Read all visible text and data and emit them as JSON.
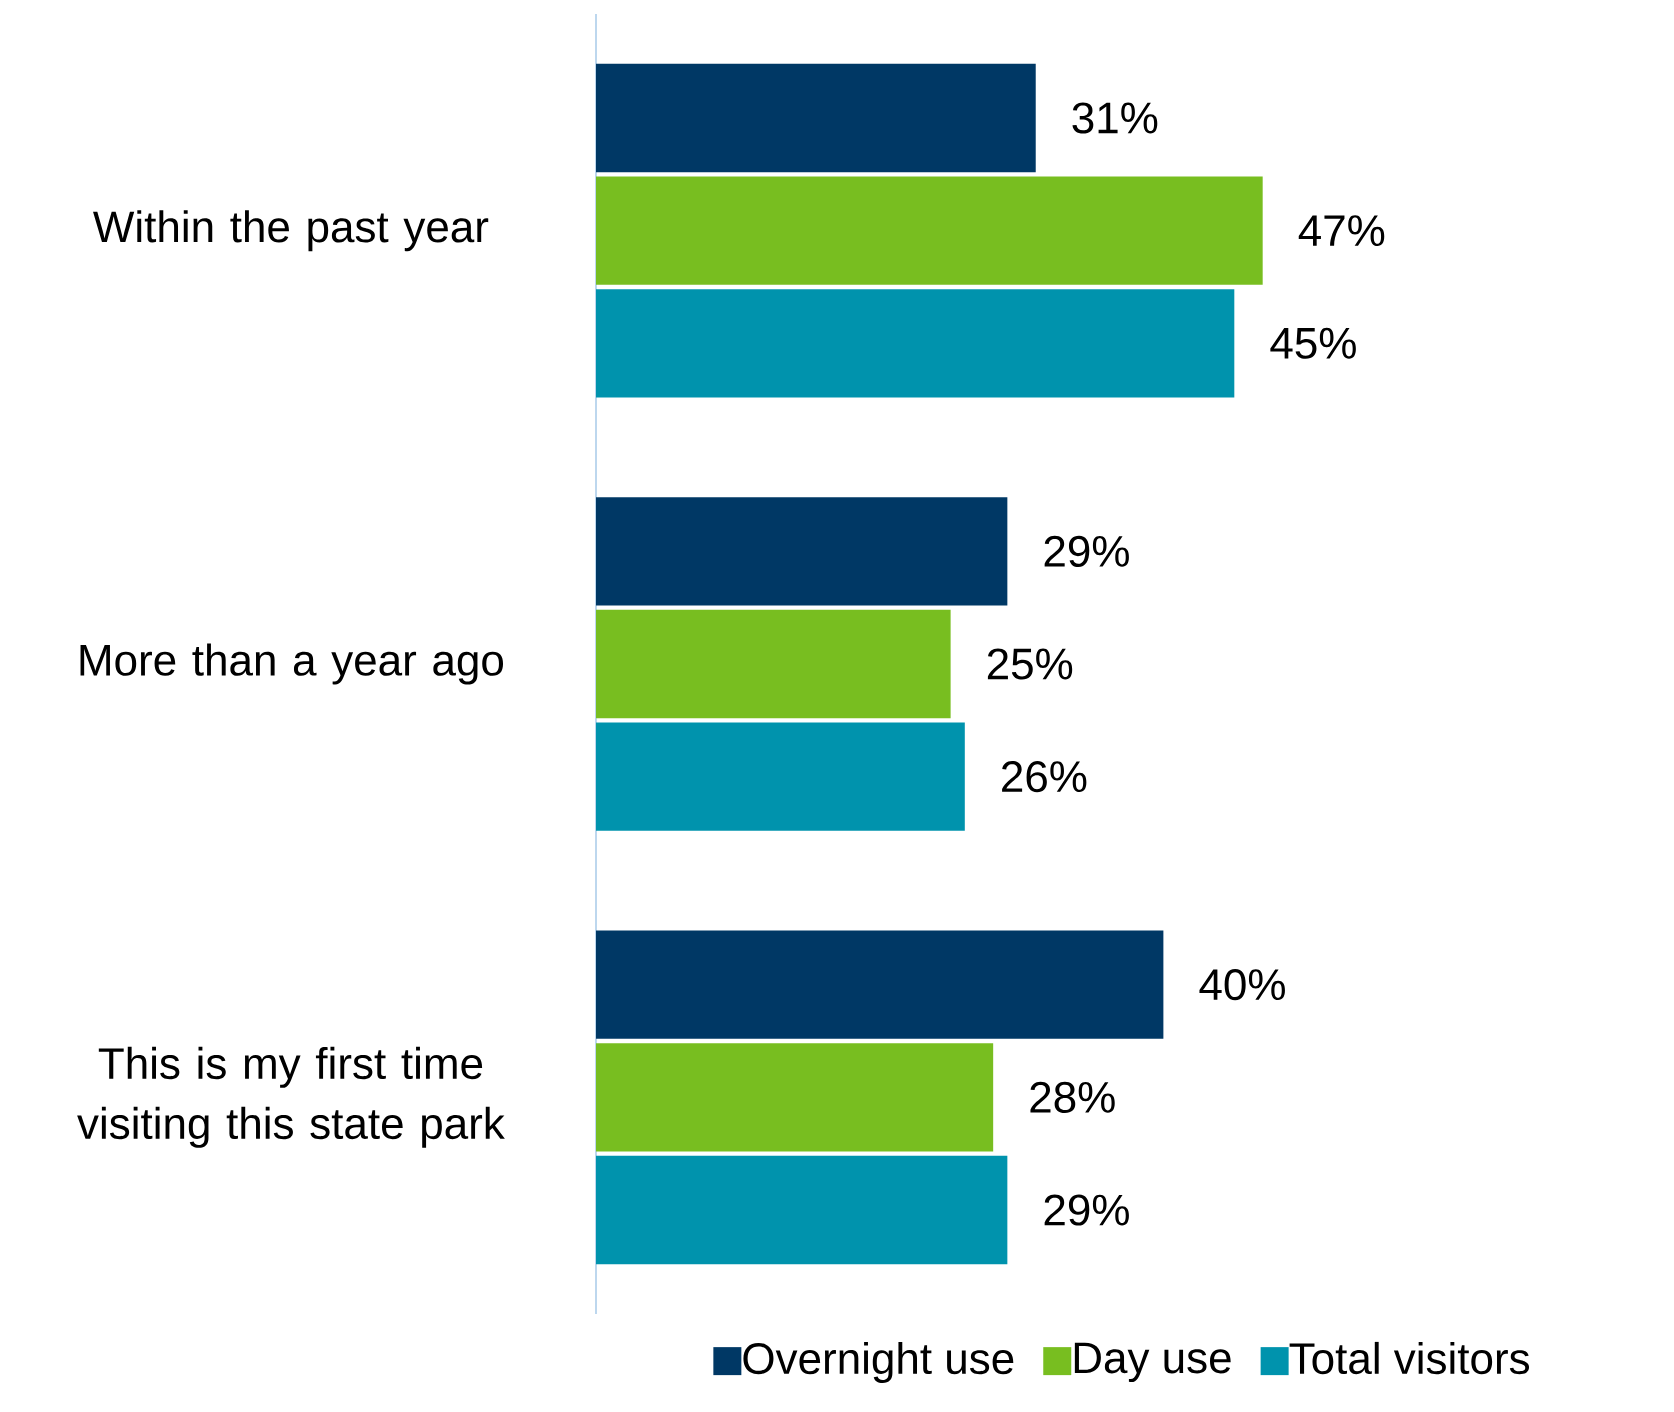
{
  "chart_data": {
    "type": "bar",
    "orientation": "horizontal",
    "categories": [
      "Within the past year",
      "More than a year ago",
      "This is my first time visiting this state park"
    ],
    "series": [
      {
        "name": "Overnight use",
        "color": "#003865",
        "values": [
          31,
          29,
          40
        ],
        "value_labels": [
          "31%",
          "29%",
          "40%"
        ]
      },
      {
        "name": "Day use",
        "color": "#78be20",
        "values": [
          47,
          25,
          28
        ],
        "value_labels": [
          "47%",
          "25%",
          "28%"
        ]
      },
      {
        "name": "Total visitors",
        "color": "#0093ad",
        "values": [
          45,
          26,
          29
        ],
        "value_labels": [
          "45%",
          "26%",
          "29%"
        ]
      }
    ],
    "legend": "bottom"
  }
}
